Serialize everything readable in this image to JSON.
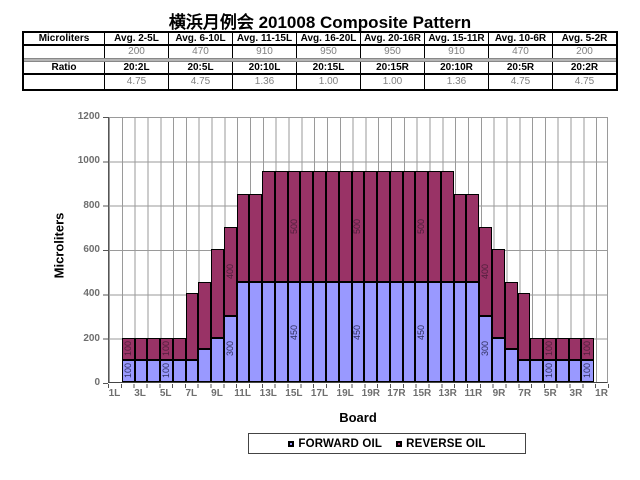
{
  "title": "横浜月例会 201008 Composite Pattern",
  "table": {
    "row1_header": "Microliters",
    "row1_cells": [
      "Avg. 2-5L",
      "Avg. 6-10L",
      "Avg. 11-15L",
      "Avg. 16-20L",
      "Avg. 20-16R",
      "Avg. 15-11R",
      "Avg. 10-6R",
      "Avg. 5-2R"
    ],
    "row2_cells": [
      "200",
      "470",
      "910",
      "950",
      "950",
      "910",
      "470",
      "200"
    ],
    "row3_header": "Ratio",
    "row3_cells": [
      "20:2L",
      "20:5L",
      "20:10L",
      "20:15L",
      "20:15R",
      "20:10R",
      "20:5R",
      "20:2R"
    ],
    "row4_cells": [
      "4.75",
      "4.75",
      "1.36",
      "1.00",
      "1.00",
      "1.36",
      "4.75",
      "4.75"
    ]
  },
  "chart_data": {
    "type": "bar",
    "stacked": true,
    "title": "",
    "xlabel": "Board",
    "ylabel": "Microliters",
    "ylim": [
      0,
      1200
    ],
    "ytick_step": 200,
    "grid": true,
    "legend_position": "bottom",
    "categories": [
      "1L",
      "2L",
      "3L",
      "4L",
      "5L",
      "6L",
      "7L",
      "8L",
      "9L",
      "10L",
      "11L",
      "12L",
      "13L",
      "14L",
      "15L",
      "16L",
      "17L",
      "18L",
      "19L",
      "20",
      "19R",
      "18R",
      "17R",
      "16R",
      "15R",
      "14R",
      "13R",
      "12R",
      "11R",
      "10R",
      "9R",
      "8R",
      "7R",
      "6R",
      "5R",
      "4R",
      "3R",
      "2R",
      "1R"
    ],
    "series": [
      {
        "name": "FORWARD OIL",
        "color": "#9999FF",
        "label_color": "#2f2f5f",
        "values": [
          0,
          100,
          100,
          100,
          100,
          100,
          100,
          150,
          200,
          300,
          450,
          450,
          450,
          450,
          450,
          450,
          450,
          450,
          450,
          450,
          450,
          450,
          450,
          450,
          450,
          450,
          450,
          450,
          450,
          300,
          200,
          150,
          100,
          100,
          100,
          100,
          100,
          100,
          0
        ]
      },
      {
        "name": "REVERSE OIL",
        "color": "#993366",
        "label_color": "#4f1f3c",
        "values": [
          0,
          100,
          100,
          100,
          100,
          100,
          300,
          300,
          400,
          400,
          400,
          400,
          500,
          500,
          500,
          500,
          500,
          500,
          500,
          500,
          500,
          500,
          500,
          500,
          500,
          500,
          500,
          400,
          400,
          400,
          400,
          300,
          300,
          100,
          100,
          100,
          100,
          100,
          0
        ]
      }
    ],
    "labeled_categories": [
      "2L",
      "5L",
      "10L",
      "15L",
      "20",
      "15R",
      "10R",
      "5R",
      "2R"
    ],
    "x_tick_labels": [
      "1L",
      "3L",
      "5L",
      "7L",
      "9L",
      "11L",
      "13L",
      "15L",
      "17L",
      "19L",
      "19R",
      "17R",
      "15R",
      "13R",
      "11R",
      "9R",
      "7R",
      "5R",
      "3R",
      "1R"
    ]
  },
  "legend": {
    "items": [
      {
        "label": "FORWARD OIL",
        "color": "#9999FF"
      },
      {
        "label": "REVERSE OIL",
        "color": "#993366"
      }
    ]
  }
}
